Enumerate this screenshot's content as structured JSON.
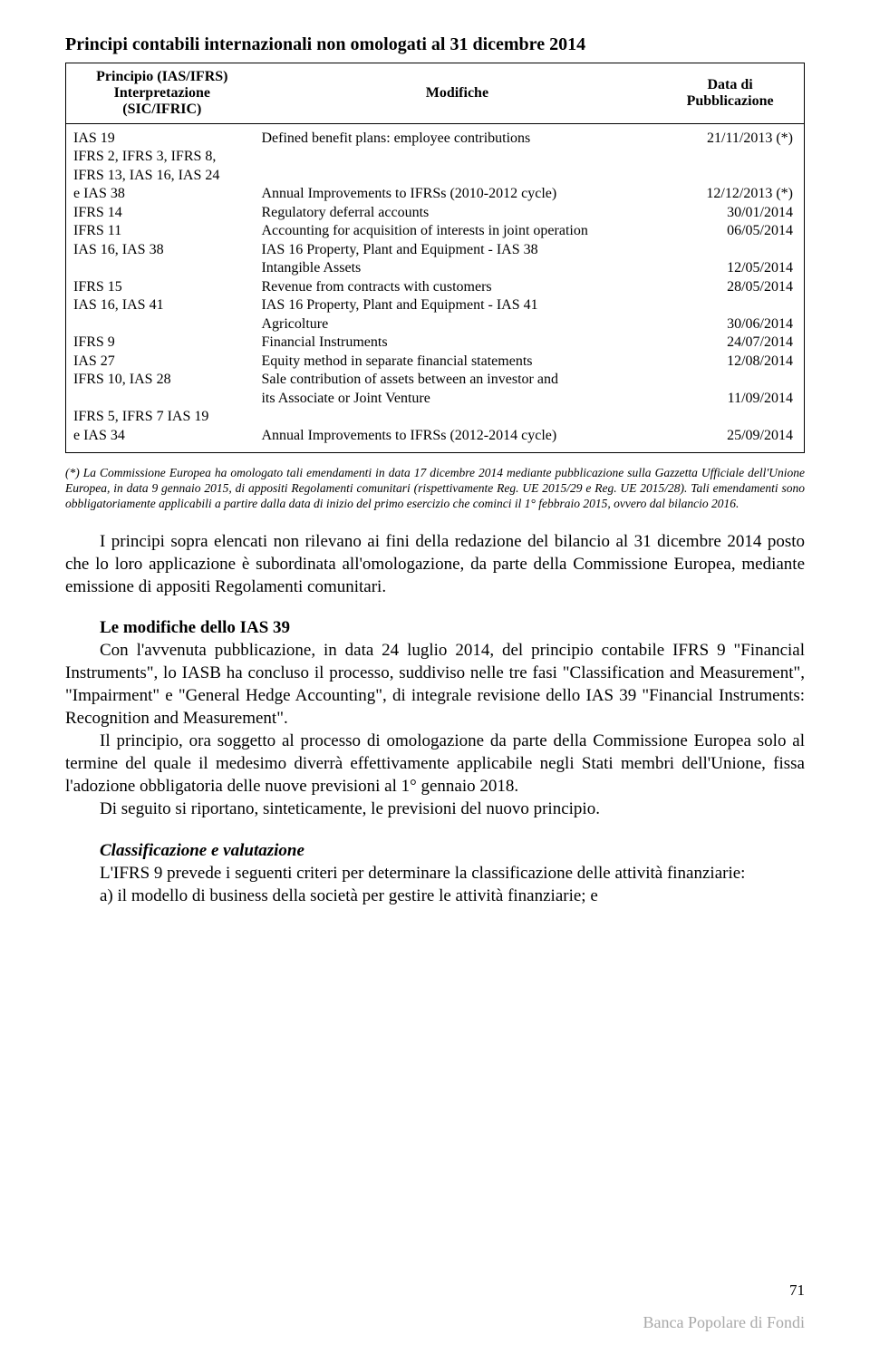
{
  "title": "Principi contabili internazionali non omologati al 31 dicembre 2014",
  "table": {
    "header": {
      "col1_l1": "Principio (IAS/IFRS)",
      "col1_l2": "Interpretazione",
      "col1_l3": "(SIC/IFRIC)",
      "col2": "Modifiche",
      "col3_l1": "Data di",
      "col3_l2": "Pubblicazione"
    },
    "rows": [
      {
        "c1": "IAS 19",
        "c2": "Defined benefit plans: employee contributions",
        "c3": "21/11/2013 (*)"
      },
      {
        "c1": "IFRS 2, IFRS 3, IFRS 8,",
        "c2": "",
        "c3": ""
      },
      {
        "c1": "IFRS 13, IAS 16, IAS 24",
        "c2": "",
        "c3": ""
      },
      {
        "c1": "e IAS 38",
        "c2": "Annual Improvements to IFRSs (2010-2012 cycle)",
        "c3": "12/12/2013 (*)"
      },
      {
        "c1": "IFRS 14",
        "c2": "Regulatory deferral accounts",
        "c3": "30/01/2014"
      },
      {
        "c1": "IFRS 11",
        "c2": "Accounting for acquisition of interests in joint operation",
        "c3": "06/05/2014"
      },
      {
        "c1": "IAS 16, IAS 38",
        "c2": "IAS 16 Property, Plant and Equipment - IAS 38",
        "c3": ""
      },
      {
        "c1": "",
        "c2": "Intangible Assets",
        "c3": "12/05/2014"
      },
      {
        "c1": "IFRS 15",
        "c2": "Revenue from contracts with customers",
        "c3": "28/05/2014"
      },
      {
        "c1": "IAS 16, IAS 41",
        "c2": "IAS 16 Property, Plant and Equipment - IAS 41",
        "c3": ""
      },
      {
        "c1": "",
        "c2": "Agricolture",
        "c3": "30/06/2014"
      },
      {
        "c1": "IFRS 9",
        "c2": "Financial Instruments",
        "c3": "24/07/2014"
      },
      {
        "c1": "IAS 27",
        "c2": "Equity method in separate financial statements",
        "c3": "12/08/2014"
      },
      {
        "c1": "IFRS 10, IAS 28",
        "c2": "Sale contribution of assets between an investor and",
        "c3": ""
      },
      {
        "c1": "",
        "c2": "its Associate or Joint Venture",
        "c3": "11/09/2014"
      },
      {
        "c1": "IFRS 5, IFRS 7 IAS 19",
        "c2": "",
        "c3": ""
      },
      {
        "c1": "e IAS 34",
        "c2": "Annual Improvements to IFRSs (2012-2014 cycle)",
        "c3": "25/09/2014"
      }
    ]
  },
  "footnote": "(*) La Commissione Europea ha omologato tali emendamenti in data 17 dicembre 2014 mediante pubblicazione sulla Gazzetta Ufficiale dell'Unione Europea, in data 9 gennaio 2015, di appositi Regolamenti comunitari (rispettivamente Reg. UE 2015/29 e Reg. UE 2015/28). Tali emendamenti sono obbligatoriamente applicabili a partire dalla data di inizio del primo esercizio che cominci il 1° febbraio 2015, ovvero dal bilancio 2016.",
  "para1": "I principi sopra elencati non rilevano ai fini della redazione del bilancio al 31 dicembre 2014 posto che lo loro applicazione è subordinata all'omologazione, da parte della Commissione Europea, mediante emissione di appositi Regolamenti comunitari.",
  "sec1_title": "Le modifiche dello IAS 39",
  "para2": "Con l'avvenuta pubblicazione, in data 24 luglio 2014, del principio contabile IFRS 9 \"Financial Instruments\", lo IASB ha concluso il processo, suddiviso nelle tre fasi \"Classification and Measurement\", \"Impairment\" e \"General Hedge Accounting\", di integrale revisione dello IAS 39 \"Financial Instruments: Recognition and Measurement\".",
  "para3": "Il principio, ora soggetto al processo di omologazione da parte della Commissione Europea solo al termine del quale il medesimo diverrà effettivamente applicabile negli Stati membri dell'Unione, fissa l'adozione obbligatoria delle nuove previsioni al 1° gennaio 2018.",
  "para4": "Di seguito si riportano, sinteticamente, le previsioni del nuovo principio.",
  "sec2_title": "Classificazione e valutazione",
  "para5": "L'IFRS 9 prevede i seguenti criteri per determinare la classificazione delle attività finanziarie:",
  "para6": "a) il modello di business della società per gestire le attività finanziarie; e",
  "page_num": "71",
  "publisher": "Banca Popolare di Fondi"
}
